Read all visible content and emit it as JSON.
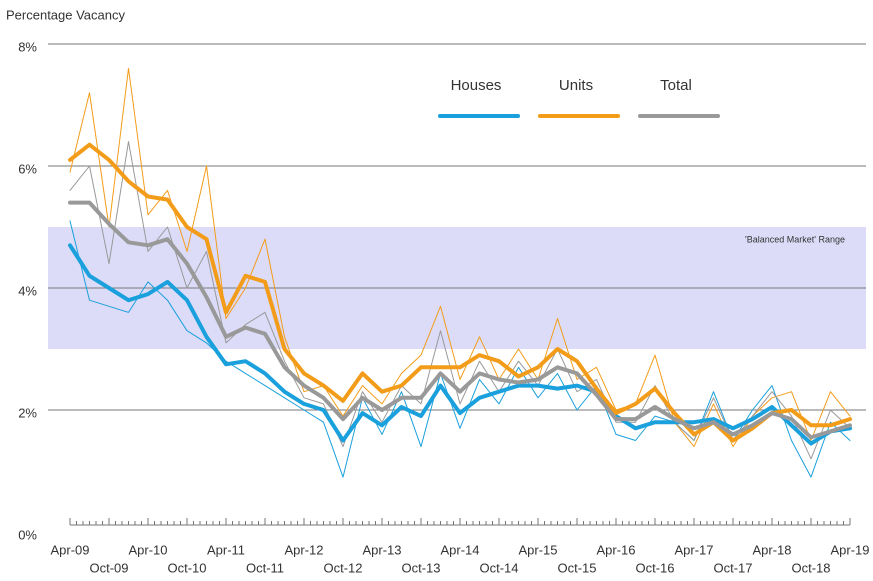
{
  "chart_data": {
    "type": "line",
    "y_axis_label": "Percentage Vacancy",
    "band": {
      "label": "'Balanced Market' Range",
      "range": [
        3,
        5
      ],
      "color": "#dcdcf8"
    },
    "categories": [
      "Apr-09",
      null,
      "Oct-09",
      null,
      "Apr-10",
      null,
      "Oct-10",
      null,
      "Apr-11",
      null,
      "Oct-11",
      null,
      "Apr-12",
      null,
      "Oct-12",
      null,
      "Apr-13",
      null,
      "Oct-13",
      null,
      "Apr-14",
      null,
      "Oct-14",
      null,
      "Apr-15",
      null,
      "Oct-15",
      null,
      "Apr-16",
      null,
      "Oct-16",
      null,
      "Apr-17",
      null,
      "Oct-17",
      null,
      "Apr-18",
      null,
      "Oct-18",
      null,
      "Apr-19"
    ],
    "series": [
      {
        "color": "#1aa0dc",
        "line_width": 1,
        "values": [
          5.1,
          3.8,
          3.7,
          3.6,
          4.1,
          3.8,
          3.3,
          3.1,
          2.8,
          2.6,
          2.4,
          2.2,
          2.0,
          1.8,
          0.9,
          2.2,
          1.6,
          2.3,
          1.4,
          2.6,
          1.7,
          2.5,
          2.1,
          2.7,
          2.2,
          2.6,
          2.0,
          2.4,
          1.6,
          1.5,
          1.9,
          1.8,
          1.5,
          2.3,
          1.5,
          2.0,
          2.4,
          1.5,
          0.9,
          1.8,
          1.5
        ]
      },
      {
        "color": "#f39c1a",
        "line_width": 1,
        "values": [
          5.9,
          7.2,
          5.0,
          7.6,
          5.2,
          5.6,
          4.6,
          6.0,
          3.5,
          4.0,
          4.8,
          3.2,
          2.3,
          2.4,
          1.9,
          2.4,
          2.1,
          2.6,
          2.9,
          3.7,
          2.5,
          3.2,
          2.5,
          3.0,
          2.5,
          3.5,
          2.5,
          2.7,
          2.0,
          2.1,
          2.9,
          1.8,
          1.4,
          2.1,
          1.4,
          1.9,
          2.2,
          2.3,
          1.5,
          2.3,
          1.9
        ]
      },
      {
        "color": "#999999",
        "line_width": 1,
        "values": [
          5.6,
          6.0,
          4.4,
          6.4,
          4.6,
          5.0,
          4.0,
          4.6,
          3.1,
          3.4,
          3.6,
          2.8,
          2.2,
          2.1,
          1.4,
          2.3,
          1.8,
          2.4,
          2.1,
          3.3,
          2.1,
          2.8,
          2.3,
          2.8,
          2.4,
          3.0,
          2.3,
          2.5,
          1.8,
          1.8,
          2.4,
          1.8,
          1.5,
          2.2,
          1.5,
          1.9,
          2.3,
          1.9,
          1.2,
          2.0,
          1.7
        ]
      },
      {
        "name": "Houses",
        "color": "#1aa0dc",
        "line_width": 4,
        "values": [
          4.7,
          4.2,
          4.0,
          3.8,
          3.9,
          4.1,
          3.8,
          3.2,
          2.75,
          2.8,
          2.6,
          2.3,
          2.1,
          2.0,
          1.5,
          1.95,
          1.75,
          2.05,
          1.9,
          2.4,
          1.95,
          2.2,
          2.3,
          2.4,
          2.4,
          2.35,
          2.4,
          2.3,
          1.9,
          1.7,
          1.8,
          1.8,
          1.8,
          1.85,
          1.7,
          1.85,
          2.05,
          1.75,
          1.45,
          1.65,
          1.7
        ]
      },
      {
        "name": "Units",
        "color": "#f39c1a",
        "line_width": 4,
        "values": [
          6.1,
          6.35,
          6.1,
          5.75,
          5.5,
          5.45,
          5.0,
          4.8,
          3.6,
          4.2,
          4.1,
          3.0,
          2.6,
          2.4,
          2.15,
          2.6,
          2.3,
          2.4,
          2.7,
          2.7,
          2.7,
          2.9,
          2.8,
          2.55,
          2.7,
          3.0,
          2.8,
          2.35,
          1.95,
          2.1,
          2.35,
          1.95,
          1.6,
          1.8,
          1.5,
          1.7,
          1.95,
          2.0,
          1.75,
          1.75,
          1.85
        ]
      },
      {
        "name": "Total",
        "color": "#999999",
        "line_width": 4,
        "values": [
          5.4,
          5.4,
          5.05,
          4.75,
          4.7,
          4.8,
          4.4,
          3.85,
          3.2,
          3.35,
          3.25,
          2.7,
          2.4,
          2.2,
          1.85,
          2.2,
          2.0,
          2.2,
          2.2,
          2.6,
          2.3,
          2.6,
          2.5,
          2.45,
          2.5,
          2.7,
          2.6,
          2.25,
          1.85,
          1.85,
          2.05,
          1.85,
          1.7,
          1.8,
          1.6,
          1.75,
          1.95,
          1.85,
          1.55,
          1.65,
          1.75
        ]
      }
    ],
    "ylim": [
      0,
      8
    ],
    "yticks": [
      {
        "value": 0,
        "label": "0%"
      },
      {
        "value": 2,
        "label": "2%"
      },
      {
        "value": 4,
        "label": "4%"
      },
      {
        "value": 6,
        "label": "6%"
      },
      {
        "value": 8,
        "label": "8%"
      }
    ],
    "grid": true,
    "legend": "top"
  }
}
